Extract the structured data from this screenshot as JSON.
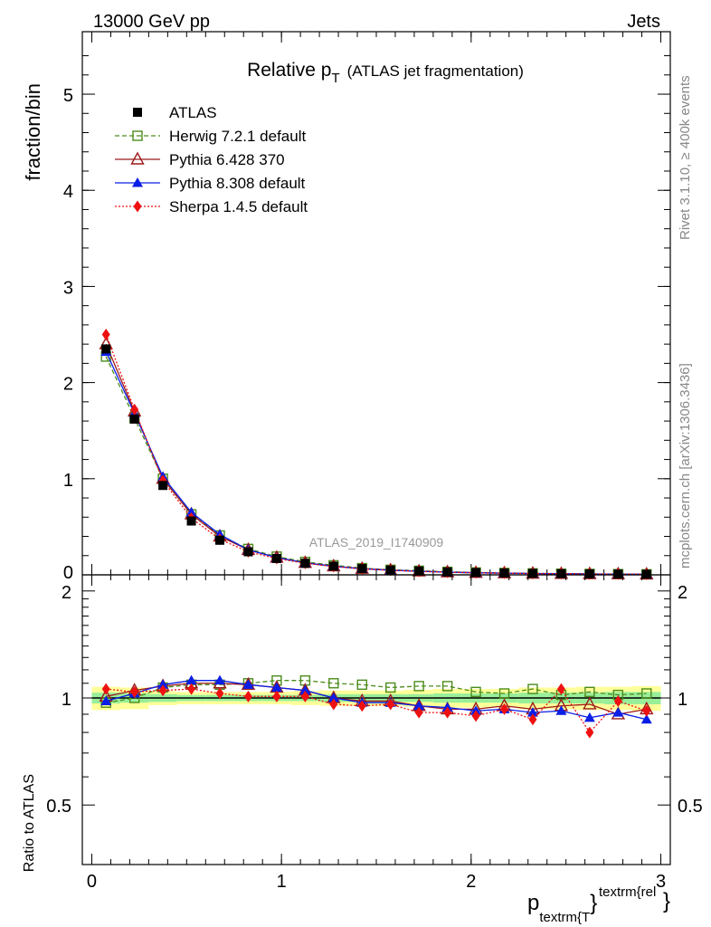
{
  "header": {
    "left": "13000 GeV pp",
    "right": "Jets"
  },
  "title": {
    "main": "Relative p",
    "sub": "T",
    "rest": "(ATLAS jet fragmentation)"
  },
  "side_labels": {
    "rivet": "Rivet 3.1.10, ≥ 400k events",
    "mcplots": "mcplots.cern.ch [arXiv:1306.3436]"
  },
  "watermark": "ATLAS_2019_I1740909",
  "xaxis_label": {
    "base": "p",
    "sub": "textrm{T",
    "close": "}",
    "sup": "textrm{rel",
    "sup_close": "}"
  },
  "chart_data": [
    {
      "type": "scatter",
      "panel": "main",
      "ylabel": "fraction/bin",
      "xlim": [
        -0.05,
        3.05
      ],
      "ylim": [
        0,
        5.65
      ],
      "x_ticks": [
        0,
        1,
        2,
        3
      ],
      "x_tick_labels": [
        "0",
        "1",
        "2",
        "3"
      ],
      "y_ticks": [
        0,
        1,
        2,
        3,
        4,
        5
      ],
      "y_tick_labels": [
        "0",
        "1",
        "2",
        "3",
        "4",
        "5"
      ],
      "x": [
        0.075,
        0.225,
        0.375,
        0.525,
        0.675,
        0.825,
        0.975,
        1.125,
        1.275,
        1.425,
        1.575,
        1.725,
        1.875,
        2.025,
        2.175,
        2.325,
        2.475,
        2.625,
        2.775,
        2.925
      ],
      "series": [
        {
          "name": "ATLAS",
          "color": "#000000",
          "marker": "square",
          "values": [
            2.35,
            1.62,
            0.93,
            0.56,
            0.36,
            0.24,
            0.17,
            0.12,
            0.09,
            0.065,
            0.05,
            0.04,
            0.03,
            0.024,
            0.019,
            0.015,
            0.012,
            0.01,
            0.008,
            0.006
          ]
        },
        {
          "name": "Herwig 7.2.1 default",
          "color": "#4c8c1c",
          "marker": "open-square",
          "dash": "5,3",
          "values": [
            2.27,
            1.63,
            1.0,
            0.63,
            0.41,
            0.27,
            0.19,
            0.135,
            0.1,
            0.07,
            0.053,
            0.043,
            0.032,
            0.025,
            0.02,
            0.016,
            0.012,
            0.01,
            0.008,
            0.006
          ]
        },
        {
          "name": "Pythia 6.428 370",
          "color": "#9c1a1a",
          "marker": "open-triangle",
          "dash": "",
          "values": [
            2.4,
            1.7,
            1.0,
            0.63,
            0.4,
            0.26,
            0.18,
            0.125,
            0.09,
            0.064,
            0.049,
            0.037,
            0.028,
            0.022,
            0.018,
            0.014,
            0.011,
            0.0095,
            0.0072,
            0.0055
          ]
        },
        {
          "name": "Pythia 8.308 default",
          "color": "#0a1ee6",
          "marker": "triangle",
          "dash": "",
          "values": [
            2.32,
            1.68,
            1.02,
            0.65,
            0.42,
            0.26,
            0.18,
            0.125,
            0.09,
            0.063,
            0.049,
            0.038,
            0.028,
            0.022,
            0.018,
            0.014,
            0.011,
            0.0088,
            0.0072,
            0.0052
          ]
        },
        {
          "name": "Sherpa 1.4.5 default",
          "color": "#ee1111",
          "marker": "diamond",
          "dash": "2,2",
          "values": [
            2.5,
            1.72,
            0.98,
            0.59,
            0.37,
            0.24,
            0.17,
            0.12,
            0.086,
            0.062,
            0.048,
            0.036,
            0.027,
            0.021,
            0.017,
            0.013,
            0.013,
            0.008,
            0.0078,
            0.0056
          ]
        }
      ]
    },
    {
      "type": "scatter",
      "panel": "ratio",
      "ylabel": "Ratio to ATLAS",
      "xlim": [
        -0.05,
        3.05
      ],
      "ylim": [
        0.34,
        2.22
      ],
      "x_ticks": [
        0,
        1,
        2,
        3
      ],
      "x_tick_labels": [
        "0",
        "1",
        "2",
        "3"
      ],
      "y_ticks": [
        0.5,
        1,
        2
      ],
      "y_tick_labels": [
        "0.5",
        "1",
        "2"
      ],
      "x": [
        0.075,
        0.225,
        0.375,
        0.525,
        0.675,
        0.825,
        0.975,
        1.125,
        1.275,
        1.425,
        1.575,
        1.725,
        1.875,
        2.025,
        2.175,
        2.325,
        2.475,
        2.625,
        2.775,
        2.925
      ],
      "band_inner": [
        0.035,
        0.03,
        0.025,
        0.02,
        0.02,
        0.02,
        0.02,
        0.02,
        0.025,
        0.025,
        0.025,
        0.025,
        0.03,
        0.03,
        0.03,
        0.035,
        0.035,
        0.035,
        0.04,
        0.04
      ],
      "band_outer": [
        0.075,
        0.07,
        0.045,
        0.04,
        0.04,
        0.04,
        0.04,
        0.045,
        0.05,
        0.05,
        0.05,
        0.055,
        0.06,
        0.06,
        0.06,
        0.07,
        0.07,
        0.075,
        0.075,
        0.08
      ],
      "series": [
        {
          "name": "Herwig 7.2.1 default",
          "values": [
            0.97,
            1.0,
            1.07,
            1.09,
            1.09,
            1.1,
            1.12,
            1.12,
            1.1,
            1.09,
            1.07,
            1.08,
            1.08,
            1.04,
            1.03,
            1.06,
            1.02,
            1.04,
            1.02,
            1.03
          ]
        },
        {
          "name": "Pythia 6.428 370",
          "values": [
            1.01,
            1.05,
            1.08,
            1.1,
            1.1,
            1.09,
            1.07,
            1.05,
            1.0,
            0.98,
            0.98,
            0.95,
            0.93,
            0.93,
            0.95,
            0.93,
            0.95,
            0.96,
            0.9,
            0.93
          ]
        },
        {
          "name": "Pythia 8.308 default",
          "values": [
            0.98,
            1.03,
            1.09,
            1.12,
            1.12,
            1.09,
            1.07,
            1.05,
            1.0,
            0.97,
            0.97,
            0.95,
            0.94,
            0.92,
            0.93,
            0.91,
            0.92,
            0.88,
            0.91,
            0.87
          ]
        },
        {
          "name": "Sherpa 1.4.5 default",
          "values": [
            1.06,
            1.04,
            1.05,
            1.06,
            1.03,
            1.01,
            1.01,
            1.01,
            0.96,
            0.95,
            0.96,
            0.91,
            0.91,
            0.89,
            0.93,
            0.87,
            1.06,
            0.8,
            0.98,
            0.92
          ]
        }
      ]
    }
  ]
}
